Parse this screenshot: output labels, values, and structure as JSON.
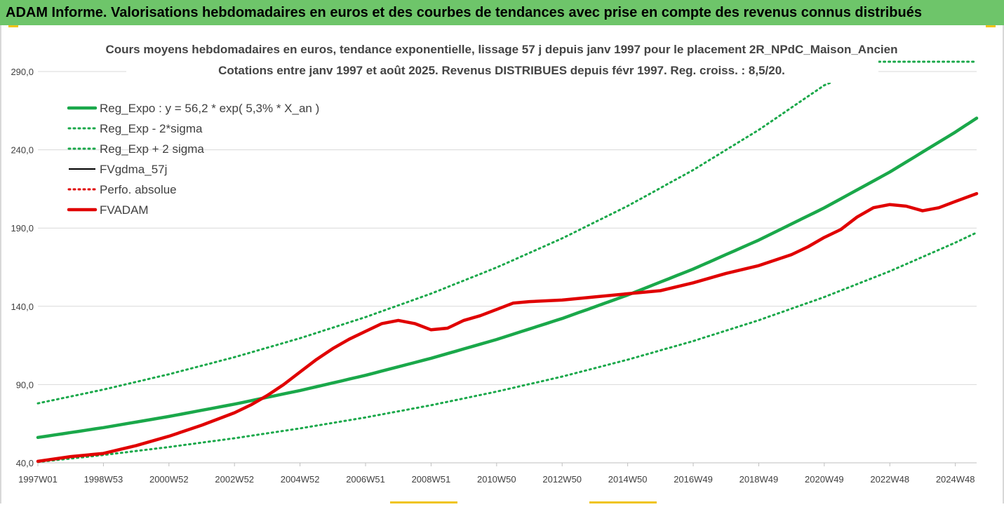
{
  "banner": {
    "title": "ADAM Informe. Valorisations hebdomadaires en euros et des courbes de tendances avec prise en compte des revenus connus distribués"
  },
  "colors": {
    "banner_bg": "#6ec56a",
    "trend_green": "#1aa84a",
    "fvadam_red": "#e00000",
    "fvgdma_black": "#000000",
    "accent_yellow": "#f0c419"
  },
  "chart_data": {
    "type": "line",
    "title": "Cours moyens hebdomadaires en euros, tendance exponentielle, lissage 57 j depuis janv 1997 pour le placement 2R_NPdC_Maison_Ancien",
    "subtitle": "Cotations entre janv 1997 et août 2025. Revenus DISTRIBUES depuis févr 1997. Reg. croiss. : 8,5/20.",
    "xlabel": "",
    "ylabel": "",
    "ylim": [
      40,
      290
    ],
    "xlim": [
      1997.0,
      2025.65
    ],
    "grid": "horizontal",
    "legend_position": "top-left",
    "y_ticks": [
      "40,0",
      "90,0",
      "140,0",
      "190,0",
      "240,0",
      "290,0"
    ],
    "y_tick_values": [
      40,
      90,
      140,
      190,
      240,
      290
    ],
    "x_ticks": [
      "1997W01",
      "1998W53",
      "2000W52",
      "2002W52",
      "2004W52",
      "2006W51",
      "2008W51",
      "2010W50",
      "2012W50",
      "2014W50",
      "2016W49",
      "2018W49",
      "2020W49",
      "2022W48",
      "2024W48"
    ],
    "x_tick_values": [
      1997.0,
      1999.0,
      2001.0,
      2003.0,
      2005.0,
      2007.0,
      2009.0,
      2011.0,
      2013.0,
      2015.0,
      2017.0,
      2019.0,
      2021.0,
      2023.0,
      2025.0
    ],
    "series": [
      {
        "name": "Reg_Expo : y = 56,2 * exp( 5,3% *  X_an )",
        "style": "solid-thick",
        "color": "#1aa84a",
        "x": [
          1997.0,
          1999.0,
          2001.0,
          2003.0,
          2005.0,
          2007.0,
          2009.0,
          2011.0,
          2013.0,
          2015.0,
          2017.0,
          2019.0,
          2021.0,
          2023.0,
          2025.0,
          2025.65
        ],
        "y": [
          56.2,
          62.5,
          69.6,
          77.5,
          86.2,
          95.9,
          106.8,
          118.8,
          132.2,
          147.2,
          163.8,
          182.3,
          202.9,
          225.8,
          251.3,
          260.2
        ]
      },
      {
        "name": "Reg_Exp - 2*sigma",
        "style": "dotted",
        "color": "#1aa84a",
        "x": [
          1997.0,
          1999.0,
          2001.0,
          2003.0,
          2005.0,
          2007.0,
          2009.0,
          2011.0,
          2013.0,
          2015.0,
          2017.0,
          2019.0,
          2021.0,
          2023.0,
          2025.0,
          2025.65
        ],
        "y": [
          40.5,
          45.0,
          50.1,
          55.7,
          62.0,
          69.0,
          76.8,
          85.5,
          95.1,
          105.9,
          117.8,
          131.1,
          145.9,
          162.4,
          180.7,
          187.1
        ]
      },
      {
        "name": "Reg_Exp + 2 sigma",
        "style": "dotted",
        "color": "#1aa84a",
        "x": [
          1997.0,
          1999.0,
          2001.0,
          2003.0,
          2005.0,
          2007.0,
          2009.0,
          2011.0,
          2013.0,
          2015.0,
          2017.0,
          2019.0,
          2021.0,
          2022.25,
          2022.3,
          2025.65
        ],
        "y": [
          78.0,
          86.8,
          96.6,
          107.5,
          119.6,
          133.1,
          148.1,
          164.8,
          183.4,
          204.1,
          227.1,
          252.7,
          281.2,
          292.0,
          298.0,
          298.0
        ]
      },
      {
        "name": "FVgdma_57j",
        "style": "solid-thin",
        "color": "#000000",
        "x": [],
        "y": []
      },
      {
        "name": "Perfo. absolue",
        "style": "dotted",
        "color": "#e00000",
        "x": [],
        "y": []
      },
      {
        "name": "FVADAM",
        "style": "solid-thick",
        "color": "#e00000",
        "x": [
          1997.0,
          1998.0,
          1999.0,
          2000.0,
          2001.0,
          2002.0,
          2003.0,
          2003.5,
          2004.0,
          2004.5,
          2005.0,
          2005.5,
          2006.0,
          2006.5,
          2007.0,
          2007.5,
          2008.0,
          2008.5,
          2009.0,
          2009.5,
          2010.0,
          2010.5,
          2011.0,
          2011.5,
          2012.0,
          2013.0,
          2014.0,
          2015.0,
          2016.0,
          2017.0,
          2018.0,
          2019.0,
          2020.0,
          2020.5,
          2021.0,
          2021.5,
          2022.0,
          2022.5,
          2023.0,
          2023.5,
          2024.0,
          2024.5,
          2025.0,
          2025.65
        ],
        "y": [
          41.0,
          44.0,
          46.0,
          51.0,
          57.0,
          64.0,
          72.0,
          77.0,
          83.0,
          90.0,
          98.0,
          106.0,
          113.0,
          119.0,
          124.0,
          129.0,
          131.0,
          129.0,
          125.0,
          126.0,
          131.0,
          134.0,
          138.0,
          142.0,
          143.0,
          144.0,
          146.0,
          148.0,
          150.0,
          155.0,
          161.0,
          166.0,
          173.0,
          178.0,
          184.0,
          189.0,
          197.0,
          203.0,
          205.0,
          204.0,
          201.0,
          203.0,
          207.0,
          212.0
        ]
      }
    ]
  }
}
